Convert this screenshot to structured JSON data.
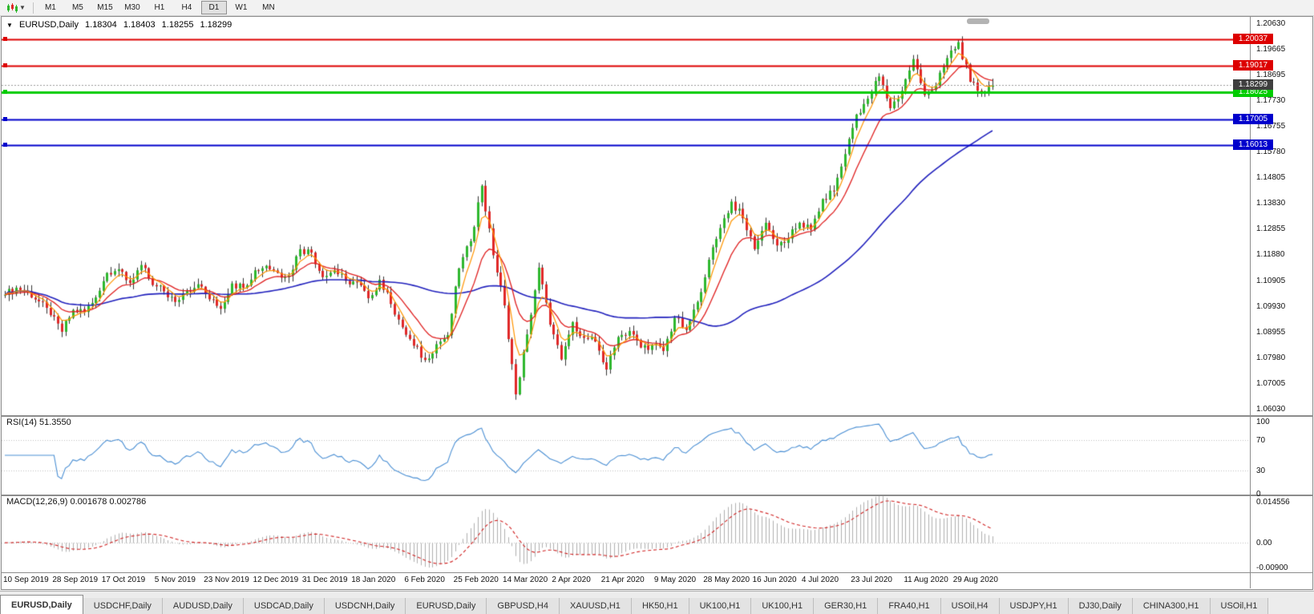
{
  "ui": {
    "toolbar": {
      "chart_type_icon": "candlestick-chart-icon",
      "timeframes": [
        "M1",
        "M5",
        "M15",
        "M30",
        "H1",
        "H4",
        "D1",
        "W1",
        "MN"
      ],
      "active_timeframe": "D1"
    },
    "header": {
      "symbol": "EURUSD,Daily",
      "open": "1.18304",
      "high": "1.18403",
      "low": "1.18255",
      "close": "1.18299"
    },
    "tabs": [
      "EURUSD,Daily",
      "USDCHF,Daily",
      "AUDUSD,Daily",
      "USDCAD,Daily",
      "USDCNH,Daily",
      "EURUSD,Daily",
      "GBPUSD,H4",
      "XAUUSD,H1",
      "HK50,H1",
      "UK100,H1",
      "UK100,H1",
      "GER30,H1",
      "FRA40,H1",
      "USOil,H4",
      "USDJPY,H1",
      "DJ30,Daily",
      "CHINA300,H1",
      "USOil,H1"
    ],
    "active_tab_index": 0
  },
  "chart_data": {
    "type": "candlestick",
    "symbol": "EURUSD",
    "timeframe": "Daily",
    "ylim": [
      1.0582,
      1.2088
    ],
    "y_tick_labels": [
      "1.20630",
      "1.19665",
      "1.18695",
      "1.17730",
      "1.16755",
      "1.15780",
      "1.14805",
      "1.13830",
      "1.12855",
      "1.11880",
      "1.10905",
      "1.09930",
      "1.08955",
      "1.07980",
      "1.07005",
      "1.06030"
    ],
    "x_tick_labels": [
      "10 Sep 2019",
      "28 Sep 2019",
      "17 Oct 2019",
      "5 Nov 2019",
      "23 Nov 2019",
      "12 Dec 2019",
      "31 Dec 2019",
      "18 Jan 2020",
      "6 Feb 2020",
      "25 Feb 2020",
      "14 Mar 2020",
      "2 Apr 2020",
      "21 Apr 2020",
      "9 May 2020",
      "28 May 2020",
      "16 Jun 2020",
      "4 Jul 2020",
      "23 Jul 2020",
      "11 Aug 2020",
      "29 Aug 2020"
    ],
    "candles": {
      "interpolation": 3,
      "anchor_closes": [
        1.1035,
        1.1062,
        1.1048,
        1.101,
        1.0958,
        1.0895,
        1.0978,
        1.097,
        1.1025,
        1.1118,
        1.1132,
        1.108,
        1.1148,
        1.1072,
        1.1048,
        1.1008,
        1.1052,
        1.1075,
        1.1018,
        1.0982,
        1.1078,
        1.1062,
        1.1128,
        1.1145,
        1.1118,
        1.1108,
        1.1208,
        1.1195,
        1.1102,
        1.1128,
        1.1088,
        1.1082,
        1.1022,
        1.1092,
        1.1,
        1.0912,
        1.0842,
        1.0788,
        1.0848,
        1.0882,
        1.1135,
        1.1238,
        1.1448,
        1.1185,
        1.0995,
        1.0658,
        1.0885,
        1.1138,
        1.0922,
        1.079,
        1.0932,
        1.0872,
        1.0858,
        1.0752,
        1.0875,
        1.0898,
        1.0835,
        1.0845,
        1.0822,
        1.0948,
        1.0902,
        1.1008,
        1.1168,
        1.1288,
        1.1388,
        1.1325,
        1.1208,
        1.1308,
        1.1222,
        1.1248,
        1.1308,
        1.1282,
        1.1398,
        1.1428,
        1.1568,
        1.1718,
        1.1778,
        1.1862,
        1.1742,
        1.1808,
        1.1928,
        1.1792,
        1.1828,
        1.1932,
        1.1992,
        1.1842,
        1.1798,
        1.183
      ]
    },
    "overlays": [
      {
        "name": "ema-fast",
        "type": "ema",
        "period": 5,
        "color": "#ff9500"
      },
      {
        "name": "ema-medium",
        "type": "ema",
        "period": 13,
        "color": "#e02020"
      },
      {
        "name": "sma-slow",
        "type": "sma",
        "period": 60,
        "color": "#2121bd"
      }
    ],
    "horizontal_lines": [
      {
        "price": 1.20037,
        "label": "1.20037",
        "color": "#dd0000",
        "width": 2
      },
      {
        "price": 1.19017,
        "label": "1.19017",
        "color": "#dd0000",
        "width": 2
      },
      {
        "price": 1.18025,
        "label": "1.18025",
        "color": "#00cc00",
        "width": 3
      },
      {
        "price": 1.17005,
        "label": "1.17005",
        "color": "#0000cc",
        "width": 2
      },
      {
        "price": 1.16013,
        "label": "1.16013",
        "color": "#0000cc",
        "width": 2
      }
    ],
    "current_price": {
      "value": 1.18299,
      "label": "1.18299",
      "box_color": "#3f3f3f"
    },
    "indicator_panes": [
      {
        "name": "RSI",
        "label": "RSI(14) 51.3550",
        "period": 14,
        "value": 51.355,
        "range": [
          0,
          100
        ],
        "levels": [
          70,
          30
        ],
        "tick_labels": [
          "100",
          "70",
          "30",
          "0"
        ],
        "color": "#4a8fd4"
      },
      {
        "name": "MACD",
        "label": "MACD(12,26,9) 0.001678 0.002786",
        "params": [
          12,
          26,
          9
        ],
        "values": [
          0.001678,
          0.002786
        ],
        "range": [
          -0.009,
          0.0146
        ],
        "tick_labels": [
          "0.014556",
          "0.00",
          "-0.00900"
        ],
        "histogram_color": "#b0b0b0",
        "signal_color": "#d02020"
      }
    ],
    "colors": {
      "up": "#2eb82e",
      "down": "#e02828",
      "wick": "#333333",
      "background": "#ffffff"
    }
  }
}
